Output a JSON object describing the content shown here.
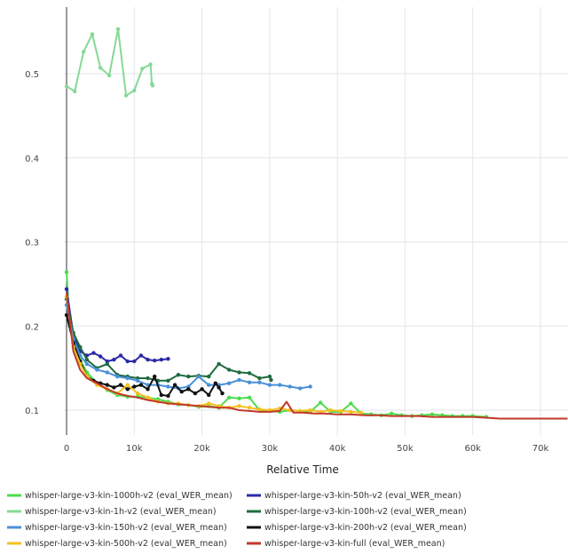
{
  "chart_data": {
    "type": "line",
    "title": "",
    "xlabel": "Relative Time",
    "ylabel": "",
    "xlim": [
      -3000,
      74000
    ],
    "ylim": [
      0.075,
      0.58
    ],
    "xticks": [
      0,
      10000,
      20000,
      30000,
      40000,
      50000,
      60000,
      70000
    ],
    "xtick_labels": [
      "0",
      "10k",
      "20k",
      "30k",
      "40k",
      "50k",
      "60k",
      "70k"
    ],
    "yticks": [
      0.1,
      0.2,
      0.3,
      0.4,
      0.5
    ],
    "ytick_labels": [
      "0.1",
      "0.2",
      "0.3",
      "0.4",
      "0.5"
    ],
    "grid": true,
    "legend_position": "bottom",
    "series": [
      {
        "name": "whisper-large-v3-kin-1000h-v2 (eval_WER_mean)",
        "color": "#4ddc4d",
        "x": [
          0,
          500,
          1000,
          2000,
          3000,
          4500,
          6000,
          7500,
          9000,
          10500,
          12000,
          13500,
          15000,
          16500,
          18000,
          19500,
          21000,
          22500,
          24000,
          25500,
          27000,
          28500,
          30000,
          31500,
          33000,
          34500,
          36000,
          37500,
          39000,
          40500,
          42000,
          43500,
          45000,
          46500,
          48000,
          49500,
          51000,
          52500,
          54000,
          55500,
          57000,
          58500,
          60000,
          62000
        ],
        "y": [
          0.264,
          0.2,
          0.18,
          0.16,
          0.145,
          0.132,
          0.124,
          0.118,
          0.116,
          0.116,
          0.115,
          0.113,
          0.11,
          0.107,
          0.106,
          0.104,
          0.105,
          0.103,
          0.115,
          0.114,
          0.115,
          0.1,
          0.099,
          0.098,
          0.1,
          0.099,
          0.098,
          0.109,
          0.098,
          0.098,
          0.108,
          0.096,
          0.095,
          0.094,
          0.096,
          0.094,
          0.093,
          0.094,
          0.095,
          0.094,
          0.093,
          0.093,
          0.093,
          0.092
        ]
      },
      {
        "name": "whisper-large-v3-kin-50h-v2 (eval_WER_mean)",
        "color": "#2a2aa8",
        "x": [
          0,
          1000,
          2000,
          3000,
          4000,
          5000,
          6000,
          7000,
          8000,
          9000,
          10000,
          11000,
          12000,
          13000,
          14000,
          15000
        ],
        "y": [
          0.244,
          0.19,
          0.17,
          0.165,
          0.168,
          0.164,
          0.158,
          0.16,
          0.165,
          0.158,
          0.158,
          0.165,
          0.16,
          0.159,
          0.16,
          0.161
        ]
      },
      {
        "name": "whisper-large-v3-kin-1h-v2 (eval_WER_mean)",
        "color": "#86d996",
        "x": [
          0,
          1200,
          2500,
          3800,
          5000,
          6300,
          7600,
          8800,
          10000,
          11200,
          12400,
          12600,
          12700
        ],
        "y": [
          0.485,
          0.479,
          0.526,
          0.547,
          0.507,
          0.498,
          0.553,
          0.474,
          0.48,
          0.506,
          0.511,
          0.488,
          0.486
        ]
      },
      {
        "name": "whisper-large-v3-kin-100h-v2 (eval_WER_mean)",
        "color": "#1e6b3e",
        "x": [
          0,
          1000,
          2000,
          3000,
          4500,
          6000,
          7500,
          9000,
          10500,
          12000,
          13500,
          15000,
          16500,
          18000,
          19500,
          21000,
          22500,
          24000,
          25500,
          27000,
          28500,
          30000,
          30200
        ],
        "y": [
          0.232,
          0.192,
          0.175,
          0.16,
          0.15,
          0.155,
          0.142,
          0.14,
          0.138,
          0.138,
          0.135,
          0.135,
          0.142,
          0.14,
          0.141,
          0.14,
          0.155,
          0.148,
          0.145,
          0.144,
          0.138,
          0.14,
          0.136
        ]
      },
      {
        "name": "whisper-large-v3-kin-150h-v2 (eval_WER_mean)",
        "color": "#4a90d9",
        "x": [
          0,
          1000,
          2000,
          3000,
          4500,
          6000,
          7500,
          9000,
          10500,
          12000,
          13500,
          15000,
          16500,
          18000,
          19500,
          21000,
          22500,
          24000,
          25500,
          27000,
          28500,
          30000,
          31500,
          33000,
          34500,
          36000
        ],
        "y": [
          0.225,
          0.185,
          0.165,
          0.155,
          0.148,
          0.145,
          0.14,
          0.138,
          0.135,
          0.13,
          0.13,
          0.128,
          0.126,
          0.128,
          0.14,
          0.13,
          0.13,
          0.132,
          0.136,
          0.133,
          0.133,
          0.13,
          0.13,
          0.128,
          0.126,
          0.128
        ]
      },
      {
        "name": "whisper-large-v3-kin-200h-v2 (eval_WER_mean)",
        "color": "#111111",
        "x": [
          0,
          1000,
          2000,
          3000,
          4000,
          5000,
          6000,
          7000,
          8000,
          9000,
          10000,
          11000,
          12000,
          13000,
          14000,
          15000,
          16000,
          17000,
          18000,
          19000,
          20000,
          21000,
          22000,
          22500,
          23000
        ],
        "y": [
          0.213,
          0.18,
          0.158,
          0.14,
          0.135,
          0.132,
          0.13,
          0.127,
          0.13,
          0.125,
          0.128,
          0.13,
          0.125,
          0.14,
          0.118,
          0.117,
          0.13,
          0.122,
          0.125,
          0.12,
          0.125,
          0.118,
          0.132,
          0.127,
          0.12
        ]
      },
      {
        "name": "whisper-large-v3-kin-500h-v2 (eval_WER_mean)",
        "color": "#f5c020",
        "x": [
          0,
          1000,
          2000,
          3000,
          4500,
          6000,
          7500,
          9000,
          10500,
          12000,
          13500,
          15000,
          16500,
          18000,
          19500,
          21000,
          22500,
          24000,
          25500,
          27000,
          28500,
          30000,
          31500,
          33000,
          34500,
          36000,
          37500,
          39000,
          40500,
          42000,
          43500
        ],
        "y": [
          0.235,
          0.175,
          0.155,
          0.14,
          0.13,
          0.125,
          0.12,
          0.13,
          0.12,
          0.115,
          0.11,
          0.108,
          0.108,
          0.106,
          0.105,
          0.108,
          0.105,
          0.103,
          0.105,
          0.103,
          0.101,
          0.1,
          0.102,
          0.1,
          0.099,
          0.1,
          0.098,
          0.1,
          0.099,
          0.098,
          0.097
        ]
      },
      {
        "name": "whisper-large-v3-kin-full (eval_WER_mean)",
        "color": "#c0392b",
        "x": [
          0,
          1000,
          2000,
          3000,
          4500,
          6000,
          7500,
          9000,
          10500,
          12000,
          13500,
          15000,
          16500,
          18000,
          19500,
          21000,
          22500,
          24000,
          25500,
          27000,
          28500,
          30000,
          31500,
          32500,
          33500,
          35000,
          36500,
          38000,
          40000,
          42000,
          44000,
          46000,
          48000,
          50000,
          52000,
          54000,
          56000,
          58000,
          60000,
          62000,
          64000,
          66000,
          68000,
          70000,
          72000,
          74000
        ],
        "y": [
          0.24,
          0.17,
          0.148,
          0.138,
          0.132,
          0.125,
          0.12,
          0.117,
          0.115,
          0.112,
          0.11,
          0.108,
          0.107,
          0.106,
          0.105,
          0.104,
          0.103,
          0.103,
          0.1,
          0.099,
          0.098,
          0.098,
          0.099,
          0.11,
          0.097,
          0.097,
          0.096,
          0.096,
          0.095,
          0.095,
          0.094,
          0.094,
          0.093,
          0.093,
          0.093,
          0.092,
          0.092,
          0.092,
          0.092,
          0.091,
          0.09,
          0.09,
          0.09,
          0.09,
          0.09,
          0.09
        ]
      }
    ]
  }
}
